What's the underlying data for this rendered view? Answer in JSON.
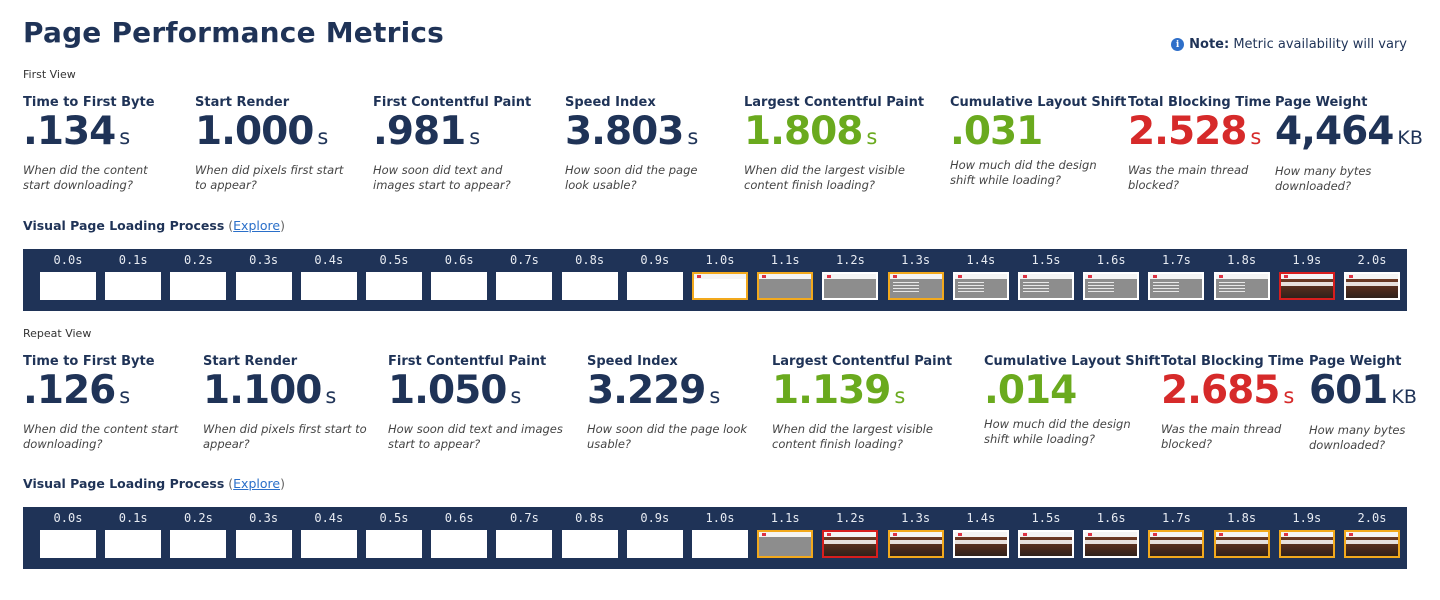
{
  "title": "Page Performance Metrics",
  "note": {
    "bold": "Note:",
    "text": " Metric availability will vary"
  },
  "views": [
    {
      "label": "First View",
      "metrics": [
        {
          "label": "Time to First Byte",
          "value": ".134",
          "unit": "s",
          "desc1": "When did the content",
          "desc2": "start downloading?",
          "status": "neutral"
        },
        {
          "label": "Start Render",
          "value": "1.000",
          "unit": "s",
          "desc1": "When did pixels first start",
          "desc2": "to appear?",
          "status": "neutral"
        },
        {
          "label": "First Contentful Paint",
          "value": ".981",
          "unit": "s",
          "desc1": "How soon did text and",
          "desc2": "images start to appear?",
          "status": "neutral"
        },
        {
          "label": "Speed Index",
          "value": "3.803",
          "unit": "s",
          "desc1": "How soon did the page",
          "desc2": "look usable?",
          "status": "neutral"
        },
        {
          "label": "Largest Contentful Paint",
          "value": "1.808",
          "unit": "s",
          "desc1": "When did the largest visible",
          "desc2": "content finish loading?",
          "status": "good"
        },
        {
          "label": "Cumulative Layout Shift",
          "value": ".031",
          "unit": "",
          "desc1": "How much did the design",
          "desc2": "shift while loading?",
          "status": "good"
        },
        {
          "label": "Total Blocking Time",
          "value": "2.528",
          "unit": "s",
          "desc1": "Was the main thread",
          "desc2": "blocked?",
          "status": "poor"
        },
        {
          "label": "Page Weight",
          "value": "4,464",
          "unit": "KB",
          "desc1": "How many bytes",
          "desc2": "downloaded?",
          "status": "neutral"
        }
      ],
      "strip_heading": "Visual Page Loading Process",
      "paren_open": " (",
      "explore_label": "Explore",
      "paren_close": ")",
      "frames": [
        {
          "time": "0.0s",
          "state": "blank",
          "border": "none"
        },
        {
          "time": "0.1s",
          "state": "blank",
          "border": "none"
        },
        {
          "time": "0.2s",
          "state": "blank",
          "border": "none"
        },
        {
          "time": "0.3s",
          "state": "blank",
          "border": "none"
        },
        {
          "time": "0.4s",
          "state": "blank",
          "border": "none"
        },
        {
          "time": "0.5s",
          "state": "blank",
          "border": "none"
        },
        {
          "time": "0.6s",
          "state": "blank",
          "border": "none"
        },
        {
          "time": "0.7s",
          "state": "blank",
          "border": "none"
        },
        {
          "time": "0.8s",
          "state": "blank",
          "border": "none"
        },
        {
          "time": "0.9s",
          "state": "blank",
          "border": "none"
        },
        {
          "time": "1.0s",
          "state": "header",
          "border": "changed"
        },
        {
          "time": "1.1s",
          "state": "gray",
          "border": "changed"
        },
        {
          "time": "1.2s",
          "state": "gray",
          "border": "none"
        },
        {
          "time": "1.3s",
          "state": "gray-text",
          "border": "changed"
        },
        {
          "time": "1.4s",
          "state": "gray-text",
          "border": "none"
        },
        {
          "time": "1.5s",
          "state": "gray-text",
          "border": "none"
        },
        {
          "time": "1.6s",
          "state": "gray-text",
          "border": "none"
        },
        {
          "time": "1.7s",
          "state": "gray-text",
          "border": "none"
        },
        {
          "time": "1.8s",
          "state": "gray-text",
          "border": "none"
        },
        {
          "time": "1.9s",
          "state": "photo",
          "border": "lcp"
        },
        {
          "time": "2.0s",
          "state": "photo",
          "border": "none"
        }
      ]
    },
    {
      "label": "Repeat View",
      "metrics": [
        {
          "label": "Time to First Byte",
          "value": ".126",
          "unit": "s",
          "desc1": "When did the content start",
          "desc2": "downloading?",
          "status": "neutral"
        },
        {
          "label": "Start Render",
          "value": "1.100",
          "unit": "s",
          "desc1": "When did pixels first start to",
          "desc2": "appear?",
          "status": "neutral"
        },
        {
          "label": "First Contentful Paint",
          "value": "1.050",
          "unit": "s",
          "desc1": "How soon did text and images",
          "desc2": "start to appear?",
          "status": "neutral"
        },
        {
          "label": "Speed Index",
          "value": "3.229",
          "unit": "s",
          "desc1": "How soon did the page look",
          "desc2": "usable?",
          "status": "neutral"
        },
        {
          "label": "Largest Contentful Paint",
          "value": "1.139",
          "unit": "s",
          "desc1": "When did the largest visible",
          "desc2": "content finish loading?",
          "status": "good"
        },
        {
          "label": "Cumulative Layout Shift",
          "value": ".014",
          "unit": "",
          "desc1": "How much did the design",
          "desc2": "shift while loading?",
          "status": "good"
        },
        {
          "label": "Total Blocking Time",
          "value": "2.685",
          "unit": "s",
          "desc1": "Was the main thread",
          "desc2": "blocked?",
          "status": "poor"
        },
        {
          "label": "Page Weight",
          "value": "601",
          "unit": "KB",
          "desc1": "How many bytes",
          "desc2": "downloaded?",
          "status": "neutral"
        }
      ],
      "strip_heading": "Visual Page Loading Process",
      "paren_open": " (",
      "explore_label": "Explore",
      "paren_close": ")",
      "frames": [
        {
          "time": "0.0s",
          "state": "blank",
          "border": "none"
        },
        {
          "time": "0.1s",
          "state": "blank",
          "border": "none"
        },
        {
          "time": "0.2s",
          "state": "blank",
          "border": "none"
        },
        {
          "time": "0.3s",
          "state": "blank",
          "border": "none"
        },
        {
          "time": "0.4s",
          "state": "blank",
          "border": "none"
        },
        {
          "time": "0.5s",
          "state": "blank",
          "border": "none"
        },
        {
          "time": "0.6s",
          "state": "blank",
          "border": "none"
        },
        {
          "time": "0.7s",
          "state": "blank",
          "border": "none"
        },
        {
          "time": "0.8s",
          "state": "blank",
          "border": "none"
        },
        {
          "time": "0.9s",
          "state": "blank",
          "border": "none"
        },
        {
          "time": "1.0s",
          "state": "blank",
          "border": "none"
        },
        {
          "time": "1.1s",
          "state": "gray",
          "border": "changed"
        },
        {
          "time": "1.2s",
          "state": "photo",
          "border": "lcp"
        },
        {
          "time": "1.3s",
          "state": "photo",
          "border": "changed"
        },
        {
          "time": "1.4s",
          "state": "photo",
          "border": "none"
        },
        {
          "time": "1.5s",
          "state": "photo",
          "border": "none"
        },
        {
          "time": "1.6s",
          "state": "photo",
          "border": "none"
        },
        {
          "time": "1.7s",
          "state": "photo",
          "border": "changed"
        },
        {
          "time": "1.8s",
          "state": "photo",
          "border": "changed"
        },
        {
          "time": "1.9s",
          "state": "photo",
          "border": "changed"
        },
        {
          "time": "2.0s",
          "state": "photo",
          "border": "changed"
        }
      ]
    }
  ],
  "colors": {
    "navy": "#1f3357",
    "good": "#6aaa1e",
    "poor": "#d62a2a",
    "changed_border": "#f2a91d",
    "lcp_border": "#d81e1e"
  },
  "icons": {
    "note": "info-icon"
  }
}
